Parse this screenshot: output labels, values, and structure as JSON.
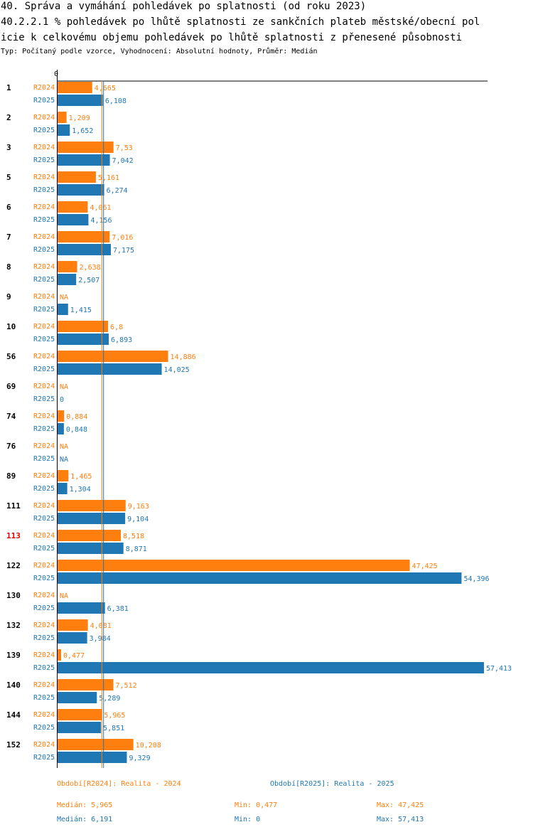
{
  "header": {
    "title_line1": "40. Správa a vymáhání pohledávek po splatnosti (od roku 2023)",
    "title_line2": "40.2.2.1 % pohledávek po lhůtě splatnosti ze sankčních plateb městské/obecní  pol",
    "title_line3": "icie k celkovému objemu pohledávek po lhůtě splatnosti z přenesené působnosti",
    "subtitle": "Typ: Počítaný podle vzorce, Vyhodnocení: Absolutní hodnoty, Průměr: Medián"
  },
  "colors": {
    "r2024": "#ff7f0e",
    "r2025": "#1f77b4",
    "highlight_category": "#e00000",
    "axis": "#000000"
  },
  "chart_data": {
    "type": "bar",
    "orientation": "horizontal",
    "axis_zero_label": "0",
    "xlim": [
      0,
      57.413
    ],
    "highlight_category": "113",
    "series_names": [
      "R2024",
      "R2025"
    ],
    "categories": [
      "1",
      "2",
      "3",
      "5",
      "6",
      "7",
      "8",
      "9",
      "10",
      "56",
      "69",
      "74",
      "76",
      "89",
      "111",
      "113",
      "122",
      "130",
      "132",
      "139",
      "140",
      "144",
      "152"
    ],
    "series": [
      {
        "name": "R2024",
        "values": [
          4.665,
          1.209,
          7.53,
          5.161,
          4.061,
          7.016,
          2.638,
          null,
          6.8,
          14.886,
          null,
          0.884,
          null,
          1.465,
          9.163,
          8.518,
          47.425,
          null,
          4.081,
          0.477,
          7.512,
          5.965,
          10.208
        ],
        "labels": [
          "4,665",
          "1,209",
          "7,53",
          "5,161",
          "4,061",
          "7,016",
          "2,638",
          "NA",
          "6,8",
          "14,886",
          "NA",
          "0,884",
          "NA",
          "1,465",
          "9,163",
          "8,518",
          "47,425",
          "NA",
          "4,081",
          "0,477",
          "7,512",
          "5,965",
          "10,208"
        ]
      },
      {
        "name": "R2025",
        "values": [
          6.108,
          1.652,
          7.042,
          6.274,
          4.156,
          7.175,
          2.507,
          1.415,
          6.893,
          14.025,
          0,
          0.848,
          null,
          1.304,
          9.104,
          8.871,
          54.396,
          6.381,
          3.984,
          57.413,
          5.289,
          5.851,
          9.329
        ],
        "labels": [
          "6,108",
          "1,652",
          "7,042",
          "6,274",
          "4,156",
          "7,175",
          "2,507",
          "1,415",
          "6,893",
          "14,025",
          "0",
          "0,848",
          "NA",
          "1,304",
          "9,104",
          "8,871",
          "54,396",
          "6,381",
          "3,984",
          "57,413",
          "5,289",
          "5,851",
          "9,329"
        ]
      }
    ],
    "medians": {
      "R2024": 5.965,
      "R2025": 6.191
    }
  },
  "legend": {
    "r2024": "Období[R2024]: Realita - 2024",
    "r2025": "Období[R2025]: Realita - 2025"
  },
  "stats": {
    "r2024": {
      "median": "Medián: 5,965",
      "min": "Min: 0,477",
      "max": "Max: 47,425"
    },
    "r2025": {
      "median": "Medián: 6,191",
      "min": "Min: 0",
      "max": "Max: 57,413"
    }
  }
}
